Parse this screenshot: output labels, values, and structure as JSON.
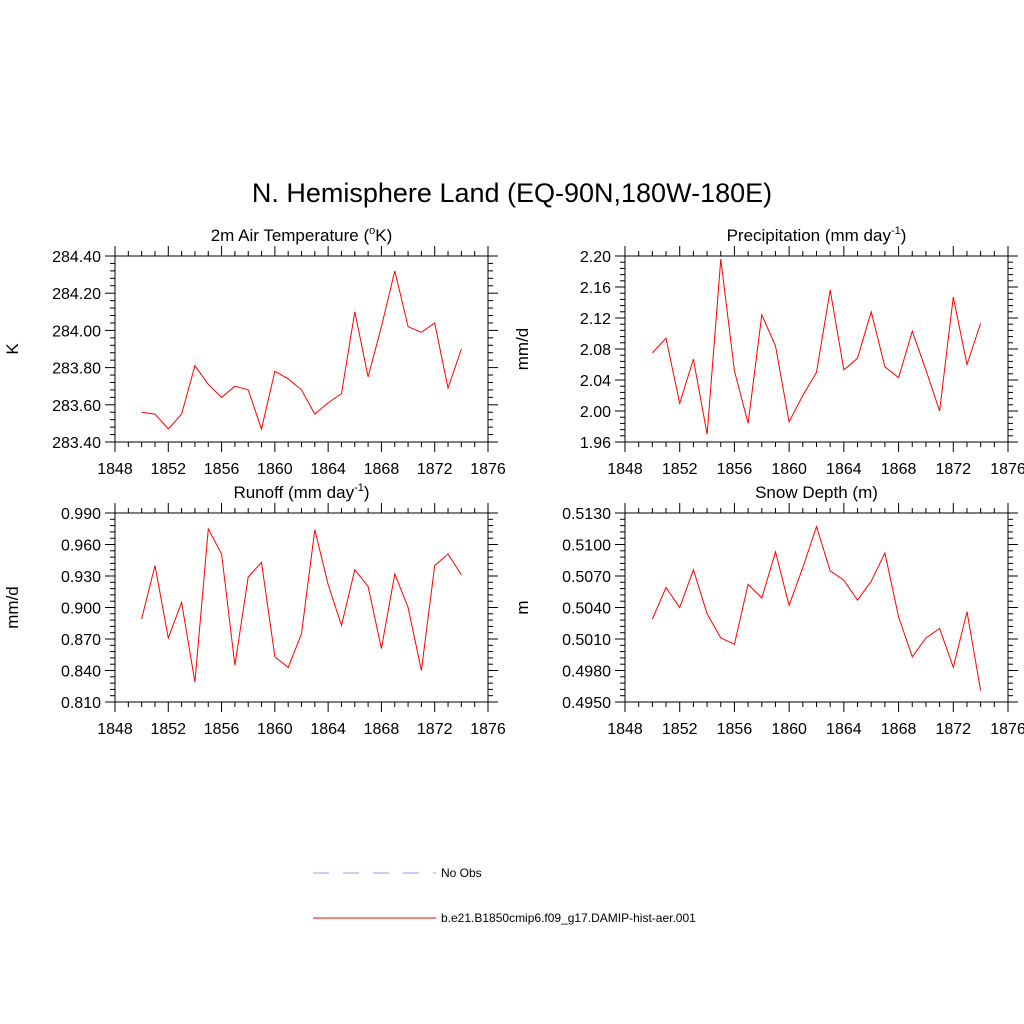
{
  "figure": {
    "title": "N. Hemisphere Land (EQ-90N,180W-180E)"
  },
  "legend": {
    "entries": [
      {
        "label": "No Obs",
        "color": "#9999ff",
        "style": "dashed"
      },
      {
        "label": "b.e21.B1850cmip6.f09_g17.DAMIP-hist-aer.001",
        "color": "#ff0000",
        "style": "solid"
      }
    ]
  },
  "chart_data": [
    {
      "type": "line",
      "title": "2m Air Temperature (",
      "title_sup": "o",
      "title_after": "K)",
      "xlabel": "",
      "ylabel": "K",
      "xlim": [
        1848,
        1876
      ],
      "ylim": [
        283.4,
        284.4
      ],
      "x_ticks": [
        "1848",
        "1852",
        "1856",
        "1860",
        "1864",
        "1868",
        "1872",
        "1876"
      ],
      "y_ticks": [
        "283.40",
        "283.60",
        "283.80",
        "284.00",
        "284.20",
        "284.40"
      ],
      "series": [
        {
          "color": "#ff0000",
          "x": [
            1850,
            1851,
            1852,
            1853,
            1854,
            1855,
            1856,
            1857,
            1858,
            1859,
            1860,
            1861,
            1862,
            1863,
            1864,
            1865,
            1866,
            1867,
            1868,
            1869,
            1870,
            1871,
            1872,
            1873,
            1874
          ],
          "y": [
            283.56,
            283.55,
            283.47,
            283.55,
            283.81,
            283.71,
            283.64,
            283.7,
            283.68,
            283.47,
            283.78,
            283.74,
            283.68,
            283.55,
            283.61,
            283.66,
            284.1,
            283.75,
            284.02,
            284.32,
            284.02,
            283.99,
            284.04,
            283.69,
            283.9
          ]
        }
      ]
    },
    {
      "type": "line",
      "title": "Precipitation (mm day",
      "title_sup": "-1",
      "title_after": ")",
      "xlabel": "",
      "ylabel": "mm/d",
      "xlim": [
        1848,
        1876
      ],
      "ylim": [
        1.96,
        2.2
      ],
      "x_ticks": [
        "1848",
        "1852",
        "1856",
        "1860",
        "1864",
        "1868",
        "1872",
        "1876"
      ],
      "y_ticks": [
        "1.96",
        "2.00",
        "2.04",
        "2.08",
        "2.12",
        "2.16",
        "2.20"
      ],
      "series": [
        {
          "color": "#ff0000",
          "x": [
            1850,
            1851,
            1852,
            1853,
            1854,
            1855,
            1856,
            1857,
            1858,
            1859,
            1860,
            1861,
            1862,
            1863,
            1864,
            1865,
            1866,
            1867,
            1868,
            1869,
            1870,
            1871,
            1872,
            1873,
            1874
          ],
          "y": [
            2.075,
            2.094,
            2.01,
            2.067,
            1.97,
            2.196,
            2.052,
            1.984,
            2.124,
            2.084,
            1.986,
            2.02,
            2.05,
            2.156,
            2.053,
            2.068,
            2.128,
            2.057,
            2.043,
            2.103,
            2.053,
            2.0,
            2.147,
            2.06,
            2.113
          ]
        }
      ]
    },
    {
      "type": "line",
      "title": "Runoff (mm day",
      "title_sup": "-1",
      "title_after": ")",
      "xlabel": "",
      "ylabel": "mm/d",
      "xlim": [
        1848,
        1876
      ],
      "ylim": [
        0.81,
        0.99
      ],
      "x_ticks": [
        "1848",
        "1852",
        "1856",
        "1860",
        "1864",
        "1868",
        "1872",
        "1876"
      ],
      "y_ticks": [
        "0.810",
        "0.840",
        "0.870",
        "0.900",
        "0.930",
        "0.960",
        "0.990"
      ],
      "series": [
        {
          "color": "#ff0000",
          "x": [
            1850,
            1851,
            1852,
            1853,
            1854,
            1855,
            1856,
            1857,
            1858,
            1859,
            1860,
            1861,
            1862,
            1863,
            1864,
            1865,
            1866,
            1867,
            1868,
            1869,
            1870,
            1871,
            1872,
            1873,
            1874
          ],
          "y": [
            0.889,
            0.94,
            0.871,
            0.905,
            0.829,
            0.975,
            0.951,
            0.845,
            0.929,
            0.943,
            0.853,
            0.843,
            0.875,
            0.974,
            0.922,
            0.883,
            0.936,
            0.92,
            0.861,
            0.932,
            0.9,
            0.84,
            0.94,
            0.951,
            0.931
          ]
        }
      ]
    },
    {
      "type": "line",
      "title": "Snow Depth (m)",
      "title_sup": "",
      "title_after": "",
      "xlabel": "",
      "ylabel": "m",
      "xlim": [
        1848,
        1876
      ],
      "ylim": [
        0.495,
        0.513
      ],
      "x_ticks": [
        "1848",
        "1852",
        "1856",
        "1860",
        "1864",
        "1868",
        "1872",
        "1876"
      ],
      "y_ticks": [
        "0.4950",
        "0.4980",
        "0.5010",
        "0.5040",
        "0.5070",
        "0.5100",
        "0.5130"
      ],
      "series": [
        {
          "color": "#ff0000",
          "x": [
            1850,
            1851,
            1852,
            1853,
            1854,
            1855,
            1856,
            1857,
            1858,
            1859,
            1860,
            1861,
            1862,
            1863,
            1864,
            1865,
            1866,
            1867,
            1868,
            1869,
            1870,
            1871,
            1872,
            1873,
            1874
          ],
          "y": [
            0.5029,
            0.5059,
            0.504,
            0.5076,
            0.5034,
            0.5011,
            0.5005,
            0.5062,
            0.5049,
            0.5093,
            0.5042,
            0.5078,
            0.5117,
            0.5075,
            0.5066,
            0.5047,
            0.5065,
            0.5092,
            0.5031,
            0.4993,
            0.5011,
            0.502,
            0.4983,
            0.5036,
            0.4961
          ]
        }
      ]
    }
  ]
}
